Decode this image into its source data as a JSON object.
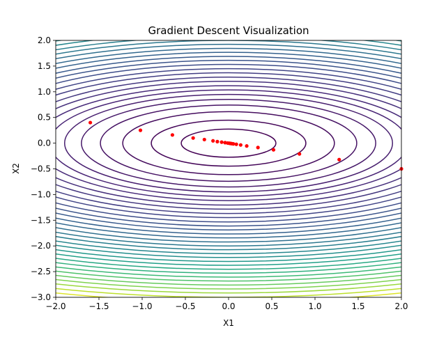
{
  "chart_data": {
    "type": "scatter",
    "title": "Gradient Descent Visualization",
    "xlabel": "X1",
    "ylabel": "X2",
    "xlim": [
      -2.0,
      2.0
    ],
    "ylim": [
      -3.0,
      2.0
    ],
    "x_ticks": [
      {
        "value": -2.0,
        "label": "−2.0"
      },
      {
        "value": -1.5,
        "label": "−1.5"
      },
      {
        "value": -1.0,
        "label": "−1.0"
      },
      {
        "value": -0.5,
        "label": "−0.5"
      },
      {
        "value": 0.0,
        "label": "0.0"
      },
      {
        "value": 0.5,
        "label": "0.5"
      },
      {
        "value": 1.0,
        "label": "1.0"
      },
      {
        "value": 1.5,
        "label": "1.5"
      },
      {
        "value": 2.0,
        "label": "2.0"
      }
    ],
    "y_ticks": [
      {
        "value": -3.0,
        "label": "−3.0"
      },
      {
        "value": -2.5,
        "label": "−2.5"
      },
      {
        "value": -2.0,
        "label": "−2.0"
      },
      {
        "value": -1.5,
        "label": "−1.5"
      },
      {
        "value": -1.0,
        "label": "−1.0"
      },
      {
        "value": -0.5,
        "label": "−0.5"
      },
      {
        "value": 0.0,
        "label": "0.0"
      },
      {
        "value": 0.5,
        "label": "0.5"
      },
      {
        "value": 1.0,
        "label": "1.0"
      },
      {
        "value": 1.5,
        "label": "1.5"
      },
      {
        "value": 2.0,
        "label": "2.0"
      }
    ],
    "grid": false,
    "colormap": "viridis",
    "contour_function": "x1^2 + 4*x2^2",
    "contour_levels": [
      0.3,
      0.8,
      1.5,
      2.2,
      2.9,
      3.6,
      4.3,
      5.0,
      5.8,
      6.6,
      7.5,
      8.4,
      9.4,
      10.4,
      11.4,
      12.5,
      13.6,
      14.8,
      16.0,
      17.2,
      18.5,
      19.8,
      21.2,
      22.6,
      24.1,
      25.6,
      27.2,
      28.8,
      30.5,
      32.2,
      34.0,
      36.0,
      38.0,
      40.0
    ],
    "path_color": "#ff0000",
    "points": [
      [
        2.0,
        -0.5
      ],
      [
        1.28,
        -0.32
      ],
      [
        0.82,
        -0.21
      ],
      [
        0.52,
        -0.13
      ],
      [
        0.34,
        -0.085
      ],
      [
        0.21,
        -0.055
      ],
      [
        0.14,
        -0.035
      ],
      [
        0.09,
        -0.022
      ],
      [
        0.055,
        -0.014
      ],
      [
        0.035,
        -0.009
      ],
      [
        0.02,
        -0.005
      ],
      [
        0.01,
        -0.002
      ],
      [
        -0.01,
        0.002
      ],
      [
        -0.04,
        0.01
      ],
      [
        -0.08,
        0.02
      ],
      [
        -0.13,
        0.03
      ],
      [
        -0.18,
        0.045
      ],
      [
        -0.28,
        0.07
      ],
      [
        -0.41,
        0.1
      ],
      [
        -0.65,
        0.16
      ],
      [
        -1.02,
        0.25
      ],
      [
        -1.6,
        0.4
      ]
    ]
  }
}
